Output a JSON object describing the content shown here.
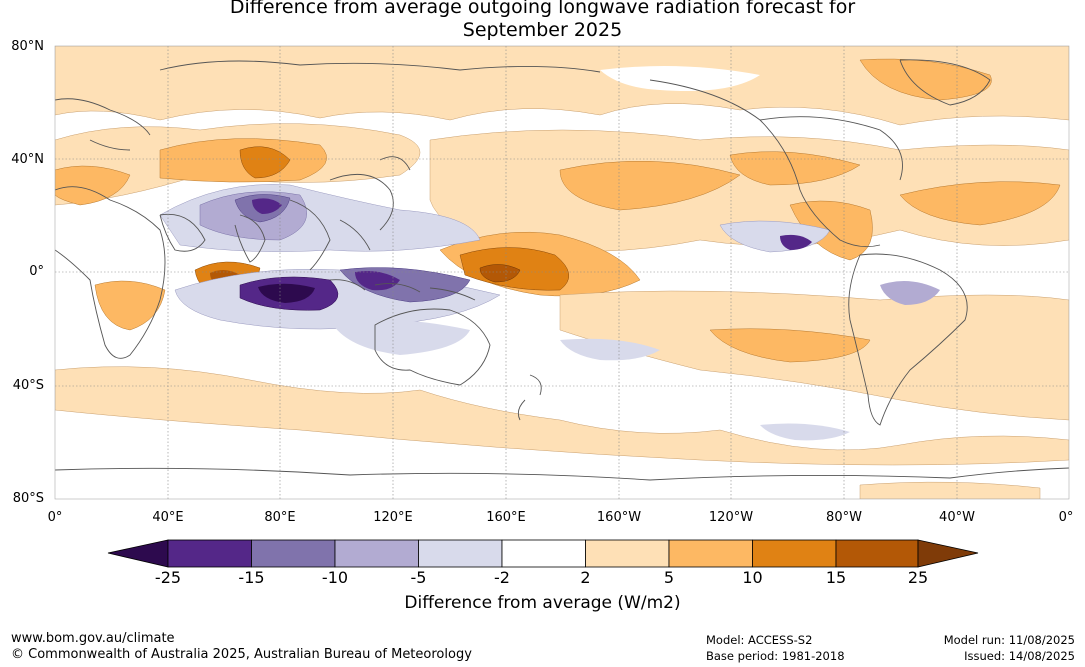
{
  "title": {
    "line1": "Difference from average outgoing longwave radiation forecast for",
    "line2": "September 2025"
  },
  "map": {
    "lat_labels": [
      "80°N",
      "40°N",
      "0°",
      "40°S",
      "80°S"
    ],
    "lon_labels": [
      "0°",
      "40°E",
      "80°E",
      "120°E",
      "160°E",
      "160°W",
      "120°W",
      "80°W",
      "40°W",
      "0°"
    ]
  },
  "colorbar": {
    "labels": [
      "-25",
      "-15",
      "-10",
      "-5",
      "-2",
      "2",
      "5",
      "10",
      "15",
      "25"
    ],
    "colors": [
      "#2d0a4e",
      "#542788",
      "#8073ac",
      "#b2abd2",
      "#d8daeb",
      "#ffffff",
      "#fee0b6",
      "#fdb863",
      "#e08214",
      "#b35806",
      "#7f3b08"
    ],
    "title": "Difference from average (W/m2)"
  },
  "footer": {
    "url": "www.bom.gov.au/climate",
    "copyright": "© Commonwealth of Australia 2025, Australian Bureau of Meteorology",
    "model": "Model: ACCESS-S2",
    "base_period": "Base period: 1981-2018",
    "model_run": "Model run: 11/08/2025",
    "issued": "Issued: 14/08/2025"
  }
}
